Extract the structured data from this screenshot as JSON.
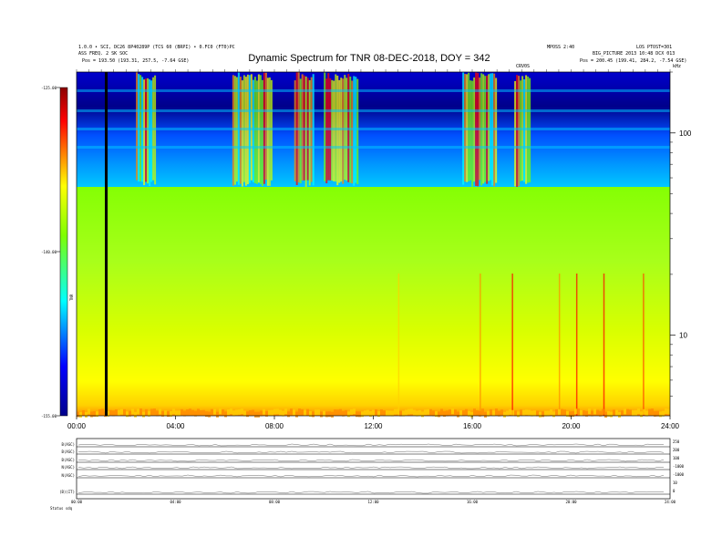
{
  "header": {
    "left_line1": "1.0.0 • SCI, DC26 8P40289P (TCS 60 (BRPI) • 0.FC0 (FT0)PC",
    "left_line2": "ASS FREQ. 2 SK SOC",
    "left_line3": "Pos = 193.50 (193.31, 257.5, -7.64 GSE)",
    "right_line1": "MPOSS 2:40",
    "right_line1b": "LOS PTOST=301",
    "right_line2": "BIG_PICTURE 2013 10:48 DCX 013",
    "right_line3": "Pos = 200.45 (199.41, 284.2, -7.54 GSE)",
    "small_mark": "CRV0S",
    "right_edge": "kHz"
  },
  "chart_data": [
    {
      "type": "heatmap",
      "title": "Dynamic Spectrum for TNR 08-DEC-2018, DOY = 342",
      "x_ticks": [
        "00:00",
        "04:00",
        "08:00",
        "12:00",
        "16:00",
        "20:00",
        "24:00"
      ],
      "x_range_hours": [
        0,
        24
      ],
      "y_scale": "log",
      "y_range_khz": [
        4,
        200
      ],
      "y_ticks_right": [
        "100",
        "10"
      ],
      "colorbar_ticks": [
        "-125.00",
        "-140.00",
        "-155.00"
      ],
      "colorbar_range": [
        -155,
        -125
      ],
      "colorbar_label": "TNR",
      "colormap": [
        "#00008b",
        "#0000ff",
        "#00c8ff",
        "#00ffff",
        "#7fff00",
        "#ffff00",
        "#ff8c00",
        "#ff0000",
        "#8b0000"
      ],
      "data_gap_hours": 1.2,
      "burst_intervals_hours": [
        [
          2.4,
          3.2
        ],
        [
          6.3,
          7.9
        ],
        [
          8.8,
          9.6
        ],
        [
          10.0,
          11.4
        ],
        [
          15.6,
          17.0
        ],
        [
          17.7,
          18.3
        ]
      ]
    },
    {
      "type": "line",
      "panel": "auxiliary",
      "labels": [
        "B(ASC)",
        "B(ASC)",
        "B(ASC)",
        "N(ASC)",
        "N(ASC)",
        "(B)(IT)"
      ],
      "right_scale": [
        "250",
        "200",
        "100",
        "-1000",
        "-1000",
        "10",
        "0"
      ],
      "x_ticks": [
        "00:00",
        "04:00",
        "08:00",
        "12:00",
        "16:00",
        "20:00",
        "24:00"
      ],
      "footer_label": "Status  sdq"
    }
  ]
}
